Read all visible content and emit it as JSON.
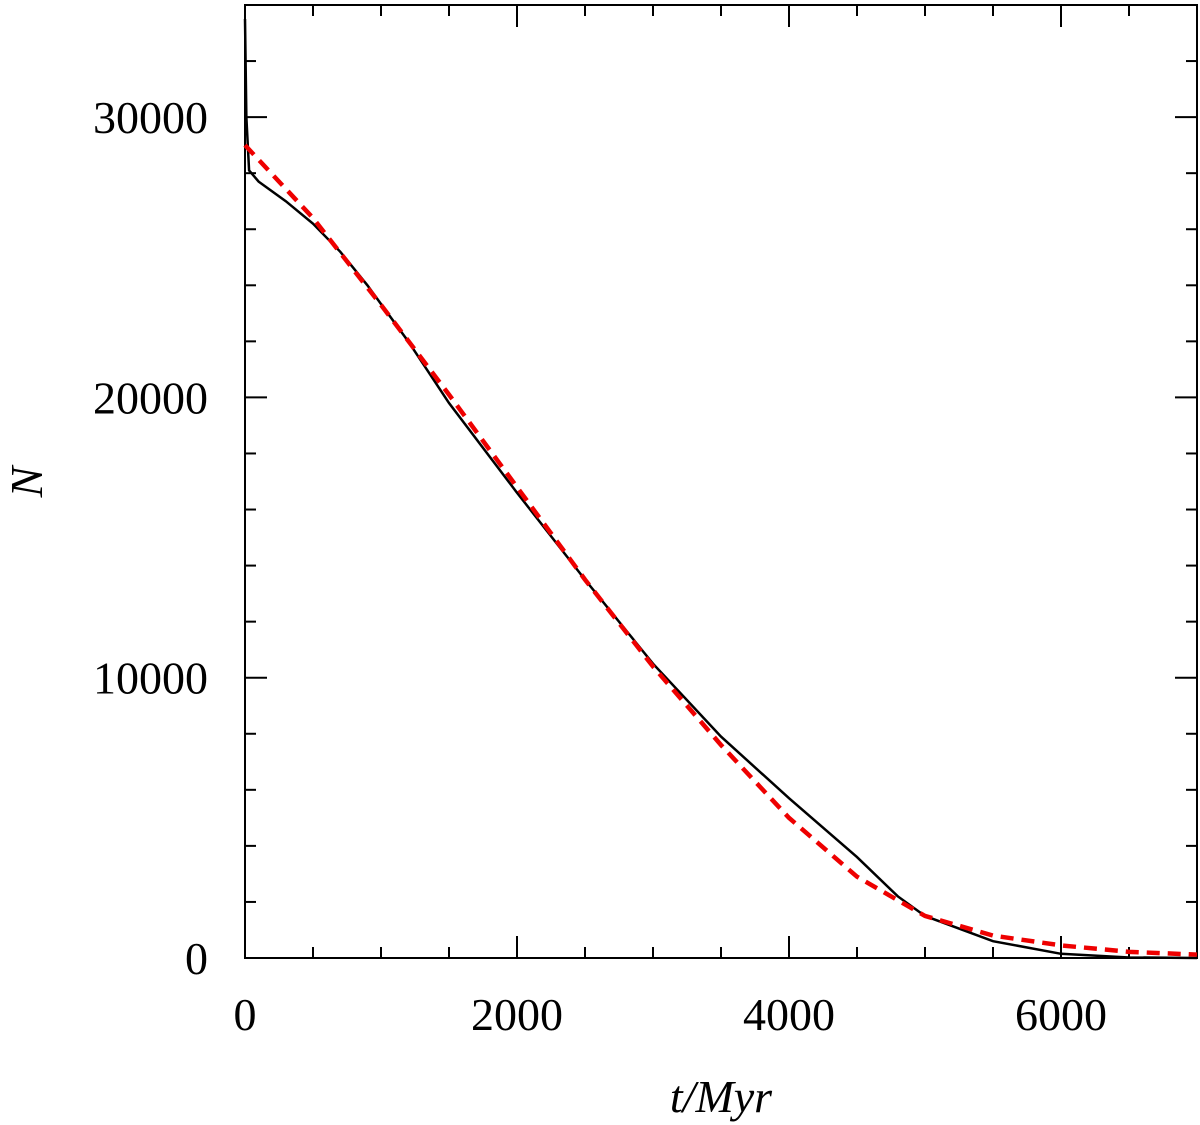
{
  "chart_data": {
    "type": "line",
    "x_label": "t/Myr",
    "y_label": "N",
    "xlim": [
      0,
      7000
    ],
    "ylim": [
      0,
      34000
    ],
    "xticks": [
      0,
      2000,
      4000,
      6000
    ],
    "yticks": [
      0,
      10000,
      20000,
      30000
    ],
    "xminorticks": [
      500,
      1000,
      1500,
      2500,
      3000,
      3500,
      4500,
      5000,
      5500,
      6500
    ],
    "yminorticks": [
      2000,
      4000,
      6000,
      8000,
      12000,
      14000,
      16000,
      18000,
      22000,
      24000,
      26000,
      28000,
      32000
    ],
    "series": [
      {
        "color": "#000000",
        "dash": false,
        "x": [
          0,
          10,
          30,
          100,
          300,
          500,
          700,
          900,
          1200,
          1500,
          2000,
          2500,
          3000,
          3500,
          4000,
          4500,
          4800,
          5000,
          5500,
          6000,
          6500,
          7000
        ],
        "values": [
          33500,
          30000,
          28100,
          27700,
          27000,
          26200,
          25200,
          24000,
          22000,
          19800,
          16600,
          13500,
          10500,
          7900,
          5700,
          3600,
          2200,
          1500,
          600,
          150,
          20,
          0
        ]
      },
      {
        "color": "#ee0000",
        "dash": true,
        "x": [
          0,
          500,
          1000,
          1500,
          2000,
          2500,
          3000,
          3500,
          4000,
          4500,
          5000,
          5500,
          6000,
          6500,
          7000
        ],
        "values": [
          29000,
          26400,
          23300,
          20100,
          16800,
          13500,
          10400,
          7600,
          5000,
          2900,
          1500,
          800,
          450,
          220,
          120
        ]
      }
    ]
  }
}
